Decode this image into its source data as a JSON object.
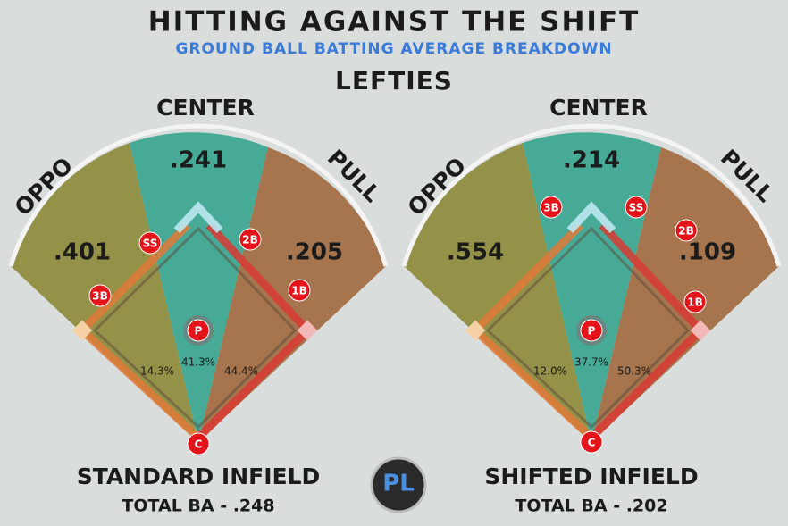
{
  "header": {
    "title": "HITTING AGAINST THE SHIFT",
    "subtitle": "GROUND BALL BATTING AVERAGE BREAKDOWN",
    "group": "LEFTIES"
  },
  "fields": [
    {
      "labels": {
        "oppo": "OPPO",
        "center": "CENTER",
        "pull": "PULL"
      },
      "averages": {
        "oppo": ".401",
        "center": ".241",
        "pull": ".205"
      },
      "shares": {
        "oppo": "14.3%",
        "center": "41.3%",
        "pull": "44.4%"
      },
      "positions": [
        "SS",
        "2B",
        "3B",
        "1B",
        "P",
        "C"
      ],
      "name": "STANDARD INFIELD",
      "total": "TOTAL BA - .248"
    },
    {
      "labels": {
        "oppo": "OPPO",
        "center": "CENTER",
        "pull": "PULL"
      },
      "averages": {
        "oppo": ".554",
        "center": ".214",
        "pull": ".109"
      },
      "shares": {
        "oppo": "12.0%",
        "center": "37.7%",
        "pull": "50.3%"
      },
      "positions": [
        "3B",
        "SS",
        "2B",
        "1B",
        "P",
        "C"
      ],
      "name": "SHIFTED INFIELD",
      "total": "TOTAL BA - .202"
    }
  ],
  "logo": "PL"
}
